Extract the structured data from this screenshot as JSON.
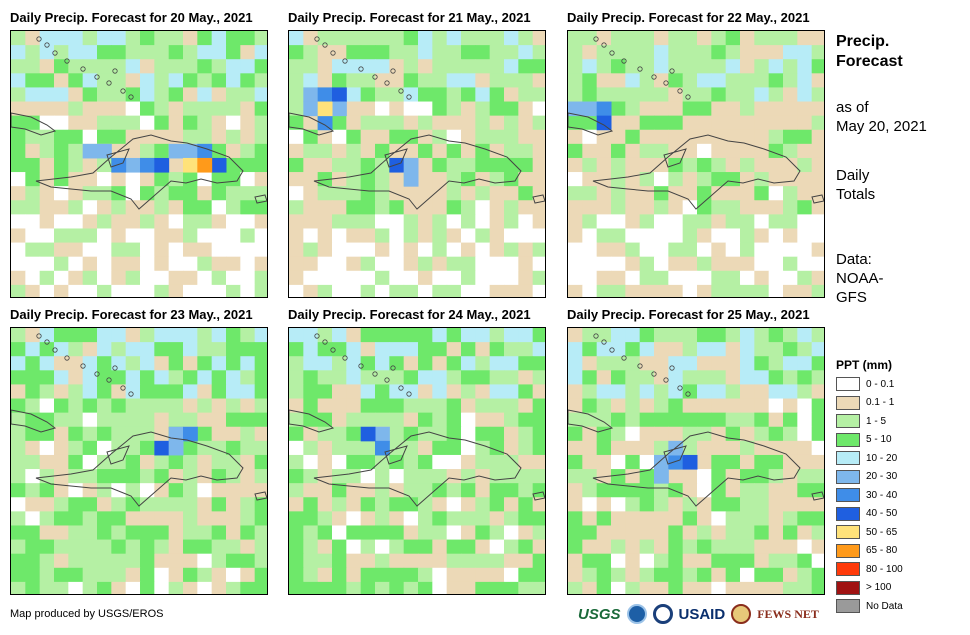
{
  "panels": [
    {
      "title": "Daily Precip. Forecast for 20 May., 2021"
    },
    {
      "title": "Daily Precip. Forecast for 21 May., 2021"
    },
    {
      "title": "Daily Precip. Forecast for 22 May., 2021"
    },
    {
      "title": "Daily Precip. Forecast for 23 May., 2021"
    },
    {
      "title": "Daily Precip. Forecast for 24 May., 2021"
    },
    {
      "title": "Daily Precip. Forecast for 25 May., 2021"
    }
  ],
  "side": {
    "title_line1": "Precip.",
    "title_line2": "Forecast",
    "asof_line1": "as of",
    "asof_line2": "May 20, 2021",
    "totals_line1": "Daily",
    "totals_line2": "Totals",
    "data_line1": "Data:",
    "data_line2": "NOAA-",
    "data_line3": "GFS"
  },
  "legend": {
    "title": "PPT (mm)",
    "items": [
      {
        "label": "0 - 0.1",
        "color": "#ffffff"
      },
      {
        "label": "0.1 - 1",
        "color": "#ecd9b7"
      },
      {
        "label": "1 - 5",
        "color": "#b5f0a4"
      },
      {
        "label": "5 - 10",
        "color": "#6ee86a"
      },
      {
        "label": "10 - 20",
        "color": "#b7ecf7"
      },
      {
        "label": "20 - 30",
        "color": "#7eb7ec"
      },
      {
        "label": "30 - 40",
        "color": "#3f8de8"
      },
      {
        "label": "40 - 50",
        "color": "#1f5fe0"
      },
      {
        "label": "50 - 65",
        "color": "#ffe27a"
      },
      {
        "label": "65 - 80",
        "color": "#ff9a1a"
      },
      {
        "label": "80 - 100",
        "color": "#ff3a0a"
      },
      {
        "label": "> 100",
        "color": "#a01212"
      },
      {
        "label": "No Data",
        "color": "#9a9a9a"
      }
    ]
  },
  "credit": "Map produced by USGS/EROS",
  "logos": {
    "usgs": "USGS",
    "usaid": "USAID",
    "fews": "FEWS NET"
  }
}
